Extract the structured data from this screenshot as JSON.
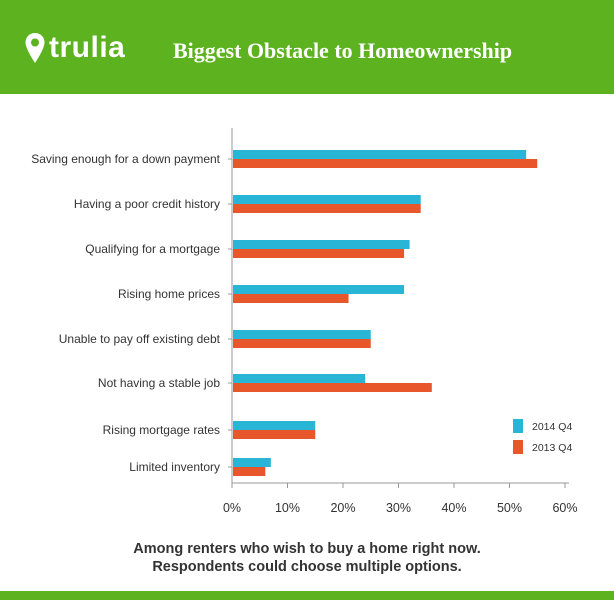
{
  "header": {
    "brand": "trulia",
    "title": "Biggest Obstacle to Homeownership",
    "colors": {
      "background": "#5cb21f",
      "text": "#ffffff"
    },
    "icon": "map-pin-icon"
  },
  "chart_data": {
    "type": "bar",
    "orientation": "horizontal",
    "categories": [
      "Saving enough for a down payment",
      "Having a poor credit history",
      "Qualifying for a mortgage",
      "Rising home prices",
      "Unable to pay off existing debt",
      "Not having a stable job",
      "Rising mortgage rates",
      "Limited inventory"
    ],
    "series": [
      {
        "name": "2014 Q4",
        "color": "#29b5d5",
        "values": [
          53,
          34,
          32,
          31,
          25,
          24,
          15,
          7
        ]
      },
      {
        "name": "2013 Q4",
        "color": "#e8572b",
        "values": [
          55,
          34,
          31,
          21,
          25,
          36,
          15,
          6
        ]
      }
    ],
    "x_ticks": [
      "0%",
      "10%",
      "20%",
      "30%",
      "40%",
      "50%",
      "60%"
    ],
    "xlim": [
      0,
      60
    ],
    "grid": false,
    "legend": "right"
  },
  "caption": {
    "line1": "Among renters who wish to buy a home right now.",
    "line2": "Respondents could choose multiple options."
  }
}
